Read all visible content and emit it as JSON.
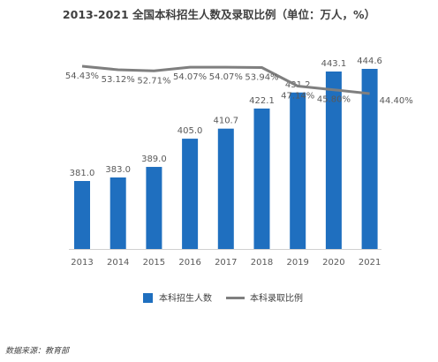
{
  "chart_data": {
    "type": "bar",
    "title": "2013-2021 全国本科招生人数及录取比例（单位：万人，%）",
    "categories": [
      "2013",
      "2014",
      "2015",
      "2016",
      "2017",
      "2018",
      "2019",
      "2020",
      "2021"
    ],
    "series": [
      {
        "name": "本科招生人数",
        "type": "bar",
        "color": "#1f6fbf",
        "values": [
          381.0,
          383.0,
          389.0,
          405.0,
          410.7,
          422.1,
          431.2,
          443.1,
          444.6
        ],
        "labels": [
          "381.0",
          "383.0",
          "389.0",
          "405.0",
          "410.7",
          "422.1",
          "431.2",
          "443.1",
          "444.6"
        ]
      },
      {
        "name": "本科录取比例",
        "type": "line",
        "color": "#7f7f7f",
        "values": [
          54.43,
          53.12,
          52.71,
          54.07,
          54.07,
          53.94,
          47.14,
          45.8,
          44.4
        ],
        "labels": [
          "54.43%",
          "53.12%",
          "52.71%",
          "54.07%",
          "54.07%",
          "53.94%",
          "47.14%",
          "45.80%",
          "44.40%"
        ]
      }
    ],
    "legend_position": "bottom-center",
    "grid": false
  },
  "source": "数据来源：教育部"
}
